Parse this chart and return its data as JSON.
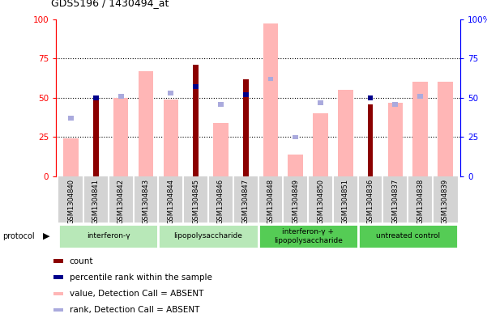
{
  "title": "GDS5196 / 1430494_at",
  "samples": [
    "GSM1304840",
    "GSM1304841",
    "GSM1304842",
    "GSM1304843",
    "GSM1304844",
    "GSM1304845",
    "GSM1304846",
    "GSM1304847",
    "GSM1304848",
    "GSM1304849",
    "GSM1304850",
    "GSM1304851",
    "GSM1304836",
    "GSM1304837",
    "GSM1304838",
    "GSM1304839"
  ],
  "count_values": [
    0,
    49,
    0,
    0,
    0,
    71,
    0,
    62,
    0,
    0,
    0,
    0,
    46,
    0,
    0,
    0
  ],
  "rank_values": [
    0,
    50,
    0,
    0,
    0,
    57,
    0,
    52,
    0,
    0,
    0,
    0,
    50,
    0,
    0,
    0
  ],
  "value_absent": [
    24,
    0,
    50,
    67,
    49,
    0,
    34,
    0,
    97,
    14,
    40,
    55,
    0,
    47,
    60,
    60
  ],
  "rank_absent": [
    37,
    0,
    51,
    0,
    53,
    0,
    46,
    0,
    62,
    25,
    47,
    0,
    0,
    46,
    51,
    0
  ],
  "protocols": [
    {
      "label": "interferon-γ",
      "start": 0,
      "end": 3
    },
    {
      "label": "lipopolysaccharide",
      "start": 4,
      "end": 7
    },
    {
      "label": "interferon-γ +\nlipopolysaccharide",
      "start": 8,
      "end": 11
    },
    {
      "label": "untreated control",
      "start": 12,
      "end": 15
    }
  ],
  "ylim": [
    0,
    100
  ],
  "color_count": "#8b0000",
  "color_rank": "#00008b",
  "color_value_absent": "#ffb6b6",
  "color_rank_absent": "#aaaadd",
  "legend_items": [
    {
      "color": "#8b0000",
      "label": "count"
    },
    {
      "color": "#00008b",
      "label": "percentile rank within the sample"
    },
    {
      "color": "#ffb6b6",
      "label": "value, Detection Call = ABSENT"
    },
    {
      "color": "#aaaadd",
      "label": "rank, Detection Call = ABSENT"
    }
  ],
  "green_light": "#aaddaa",
  "green_dark": "#55cc55",
  "protocol_colors": [
    "#aaddaa",
    "#aaddaa",
    "#55cc55",
    "#55cc55"
  ]
}
